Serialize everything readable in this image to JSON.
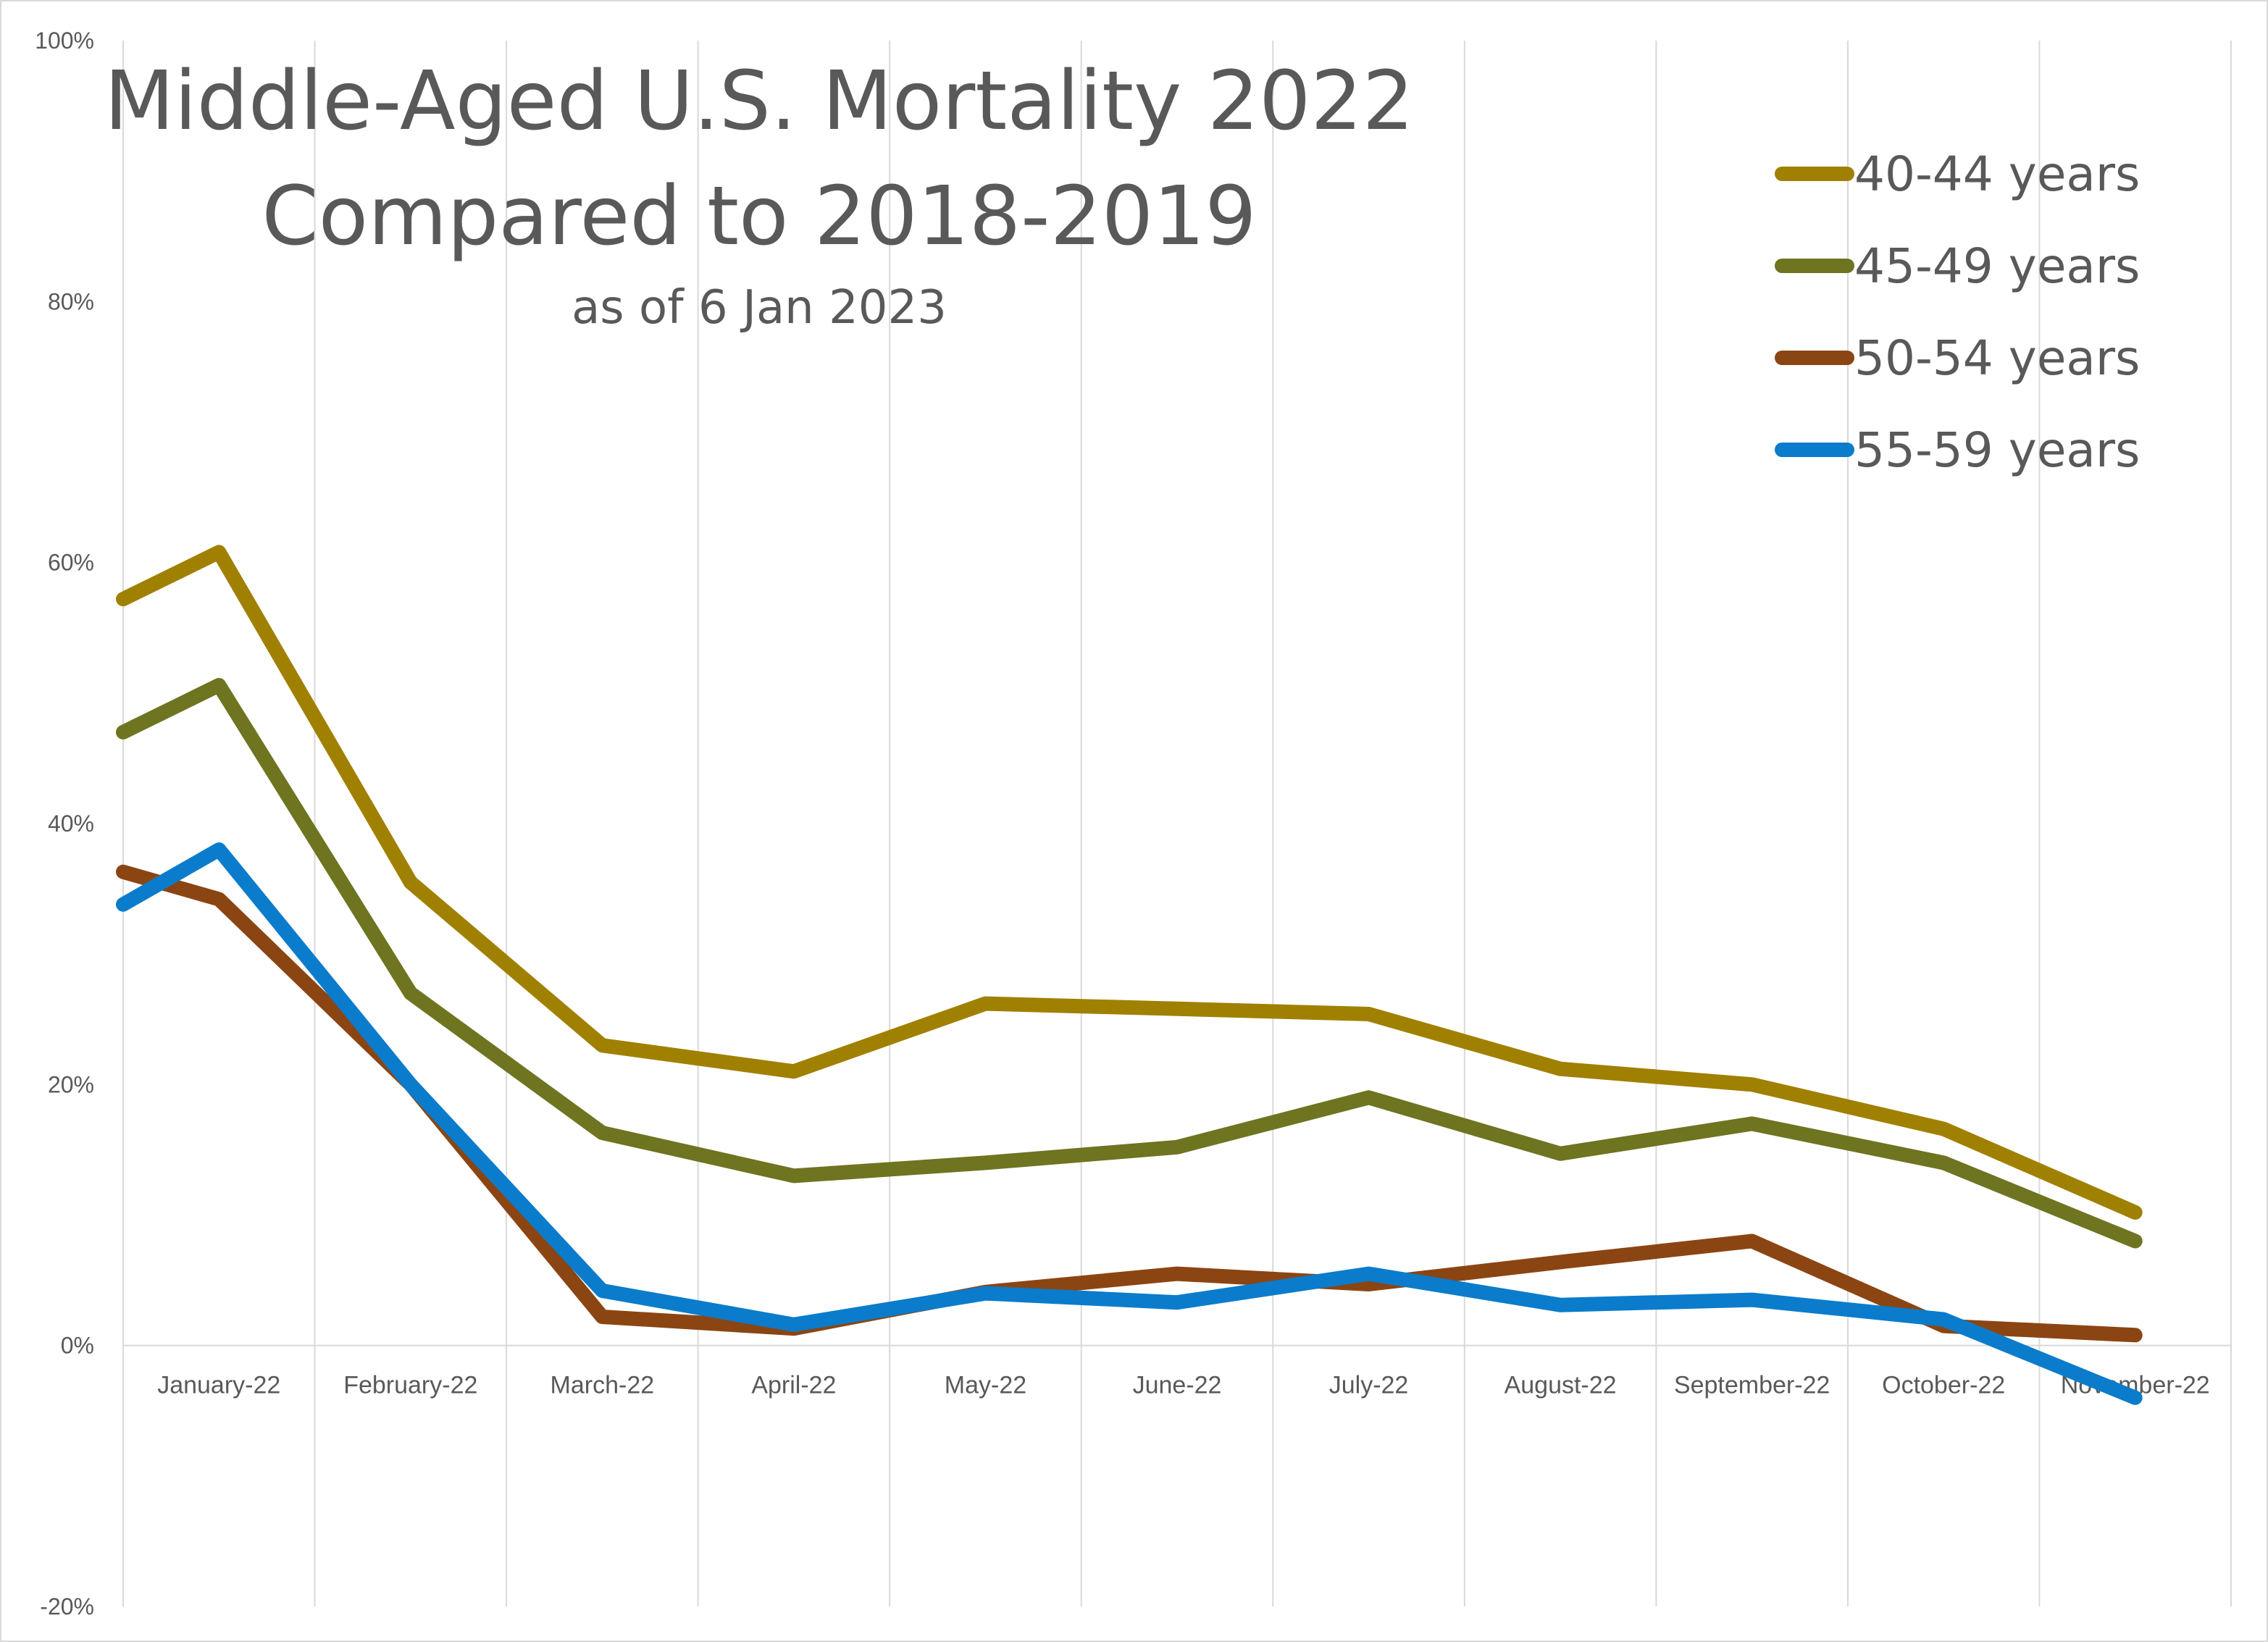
{
  "chart_data": {
    "type": "line",
    "title": "Middle-Aged U.S. Mortality 2022",
    "title_line2": "Compared to 2018-2019",
    "subtitle": "as of 6 Jan 2023",
    "xlabel": "",
    "ylabel": "",
    "categories": [
      "January-22",
      "February-22",
      "March-22",
      "April-22",
      "May-22",
      "June-22",
      "July-22",
      "August-22",
      "September-22",
      "October-22",
      "November-22"
    ],
    "ylim": [
      -20,
      100
    ],
    "yticks": [
      -20,
      0,
      20,
      40,
      60,
      80,
      100
    ],
    "ytick_labels": [
      "-20%",
      "0%",
      "20%",
      "40%",
      "60%",
      "80%",
      "100%"
    ],
    "grid": "vertical",
    "legend_position": "top-right",
    "series": [
      {
        "name": "40-44 years",
        "color": "#A08000",
        "start": 57.2,
        "values": [
          60.8,
          35.5,
          23.0,
          21.0,
          26.2,
          25.8,
          25.4,
          21.2,
          20.0,
          16.6,
          10.2
        ]
      },
      {
        "name": "45-49 years",
        "color": "#6E7420",
        "start": 47.0,
        "values": [
          50.6,
          27.0,
          16.3,
          13.0,
          14.0,
          15.2,
          19.0,
          14.7,
          17.0,
          14.0,
          8.0
        ]
      },
      {
        "name": "50-54 years",
        "color": "#8B4513",
        "start": 36.3,
        "values": [
          34.2,
          20.0,
          2.2,
          1.3,
          4.1,
          5.5,
          4.7,
          6.4,
          8.0,
          1.5,
          0.8
        ]
      },
      {
        "name": "55-59 years",
        "color": "#0A7CCB",
        "start": 33.8,
        "values": [
          38.0,
          20.0,
          4.2,
          1.6,
          4.0,
          3.3,
          5.5,
          3.1,
          3.5,
          2.0,
          -4.0
        ]
      }
    ]
  }
}
